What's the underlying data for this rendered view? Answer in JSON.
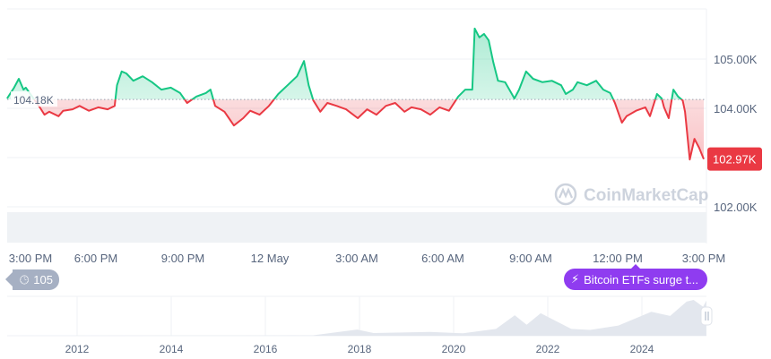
{
  "colors": {
    "up": "#16c784",
    "down": "#ea3943",
    "baseline": "#9aa3b2",
    "grid": "#eff2f5",
    "news": "#8f3cf0",
    "event": "#a6b0c3"
  },
  "chart_data": [
    {
      "type": "line",
      "title": "",
      "xlabel": "",
      "ylabel": "",
      "y_unit": "K",
      "baseline": {
        "value": 104.18,
        "label": "104.18K"
      },
      "current": {
        "value": 102.97,
        "label": "102.97K"
      },
      "yticks": [
        "105.00K",
        "104.00K",
        "102.00K"
      ],
      "ytick_values": [
        105,
        104,
        102
      ],
      "xticks": [
        "3:00 PM",
        "6:00 PM",
        "9:00 PM",
        "12 May",
        "3:00 AM",
        "6:00 AM",
        "9:00 AM",
        "12:00 PM",
        "3:00 PM"
      ],
      "grid": true,
      "series": [
        {
          "points": [
            [
              "11 May 14:10",
              104.2
            ],
            [
              "11 May 14:25",
              104.42
            ],
            [
              "11 May 14:35",
              104.6
            ],
            [
              "11 May 14:45",
              104.38
            ],
            [
              "11 May 14:50",
              104.42
            ],
            [
              "11 May 15:20",
              104.02
            ],
            [
              "11 May 15:30",
              103.87
            ],
            [
              "11 May 15:40",
              103.93
            ],
            [
              "11 May 16:00",
              103.84
            ],
            [
              "11 May 16:10",
              103.95
            ],
            [
              "11 May 16:30",
              103.98
            ],
            [
              "11 May 16:45",
              104.05
            ],
            [
              "11 May 17:05",
              103.95
            ],
            [
              "11 May 17:25",
              104.02
            ],
            [
              "11 May 17:45",
              103.98
            ],
            [
              "11 May 18:00",
              104.05
            ],
            [
              "11 May 18:05",
              104.47
            ],
            [
              "11 May 18:15",
              104.75
            ],
            [
              "11 May 18:25",
              104.71
            ],
            [
              "11 May 18:40",
              104.56
            ],
            [
              "11 May 19:00",
              104.65
            ],
            [
              "11 May 19:20",
              104.53
            ],
            [
              "11 May 19:40",
              104.38
            ],
            [
              "11 May 20:00",
              104.42
            ],
            [
              "11 May 20:20",
              104.31
            ],
            [
              "11 May 20:35",
              104.11
            ],
            [
              "11 May 20:55",
              104.24
            ],
            [
              "11 May 21:15",
              104.31
            ],
            [
              "11 May 21:25",
              104.38
            ],
            [
              "11 May 21:35",
              104.05
            ],
            [
              "11 May 21:55",
              103.93
            ],
            [
              "11 May 22:15",
              103.65
            ],
            [
              "11 May 22:35",
              103.8
            ],
            [
              "11 May 22:50",
              103.95
            ],
            [
              "11 May 23:10",
              103.87
            ],
            [
              "11 May 23:30",
              104.05
            ],
            [
              "11 May 23:50",
              104.29
            ],
            [
              "12 May 00:10",
              104.47
            ],
            [
              "12 May 00:30",
              104.65
            ],
            [
              "12 May 00:45",
              104.96
            ],
            [
              "12 May 00:55",
              104.47
            ],
            [
              "12 May 01:05",
              104.16
            ],
            [
              "12 May 01:20",
              103.93
            ],
            [
              "12 May 01:35",
              104.11
            ],
            [
              "12 May 01:55",
              104.05
            ],
            [
              "12 May 02:15",
              103.98
            ],
            [
              "12 May 02:40",
              103.8
            ],
            [
              "12 May 03:00",
              103.98
            ],
            [
              "12 May 03:20",
              103.87
            ],
            [
              "12 May 03:40",
              104.05
            ],
            [
              "12 May 04:00",
              104.11
            ],
            [
              "12 May 04:20",
              103.93
            ],
            [
              "12 May 04:35",
              104.02
            ],
            [
              "12 May 04:55",
              103.98
            ],
            [
              "12 May 05:15",
              103.87
            ],
            [
              "12 May 05:35",
              104.02
            ],
            [
              "12 May 05:55",
              103.95
            ],
            [
              "12 May 06:15",
              104.24
            ],
            [
              "12 May 06:30",
              104.38
            ],
            [
              "12 May 06:45",
              104.38
            ],
            [
              "12 May 06:50",
              105.62
            ],
            [
              "12 May 07:00",
              105.44
            ],
            [
              "12 May 07:10",
              105.51
            ],
            [
              "12 May 07:20",
              105.38
            ],
            [
              "12 May 07:30",
              104.93
            ],
            [
              "12 May 07:40",
              104.56
            ],
            [
              "12 May 07:55",
              104.53
            ],
            [
              "12 May 08:15",
              104.2
            ],
            [
              "12 May 08:25",
              104.38
            ],
            [
              "12 May 08:40",
              104.75
            ],
            [
              "12 May 08:55",
              104.6
            ],
            [
              "12 May 09:15",
              104.53
            ],
            [
              "12 May 09:35",
              104.56
            ],
            [
              "12 May 09:55",
              104.47
            ],
            [
              "12 May 10:05",
              104.29
            ],
            [
              "12 May 10:20",
              104.38
            ],
            [
              "12 May 10:30",
              104.53
            ],
            [
              "12 May 10:50",
              104.47
            ],
            [
              "12 May 11:10",
              104.56
            ],
            [
              "12 May 11:25",
              104.38
            ],
            [
              "12 May 11:40",
              104.31
            ],
            [
              "12 May 11:50",
              104.11
            ],
            [
              "12 May 12:00",
              103.84
            ],
            [
              "12 May 12:05",
              103.71
            ],
            [
              "12 May 12:15",
              103.84
            ],
            [
              "12 May 12:35",
              103.95
            ],
            [
              "12 May 12:55",
              104.02
            ],
            [
              "12 May 13:05",
              103.84
            ],
            [
              "12 May 13:20",
              104.29
            ],
            [
              "12 May 13:30",
              104.2
            ],
            [
              "12 May 13:35",
              104.02
            ],
            [
              "12 May 13:45",
              103.8
            ],
            [
              "12 May 13:55",
              104.38
            ],
            [
              "12 May 14:05",
              104.24
            ],
            [
              "12 May 14:15",
              104.16
            ],
            [
              "12 May 14:20",
              103.93
            ],
            [
              "12 May 14:30",
              102.96
            ],
            [
              "12 May 14:40",
              103.38
            ],
            [
              "12 May 14:50",
              103.2
            ],
            [
              "12 May 15:00",
              102.97
            ]
          ]
        }
      ]
    },
    {
      "type": "area",
      "title": "",
      "xticks": [
        "2012",
        "2014",
        "2016",
        "2018",
        "2020",
        "2022",
        "2024"
      ],
      "series": [
        {
          "points": [
            [
              2010.6,
              0
            ],
            [
              2017.0,
              1
            ],
            [
              2017.95,
              18
            ],
            [
              2018.3,
              8
            ],
            [
              2019.5,
              11
            ],
            [
              2020.2,
              7
            ],
            [
              2020.9,
              20
            ],
            [
              2021.3,
              60
            ],
            [
              2021.55,
              32
            ],
            [
              2021.85,
              66
            ],
            [
              2022.5,
              20
            ],
            [
              2022.9,
              17
            ],
            [
              2023.5,
              30
            ],
            [
              2024.2,
              70
            ],
            [
              2024.6,
              58
            ],
            [
              2024.95,
              100
            ],
            [
              2025.1,
              105
            ],
            [
              2025.3,
              85
            ],
            [
              2025.37,
              103
            ]
          ]
        }
      ]
    }
  ],
  "watermark": "CoinMarketCap",
  "events": {
    "count": "105",
    "news": "Bitcoin ETFs surge t..."
  }
}
